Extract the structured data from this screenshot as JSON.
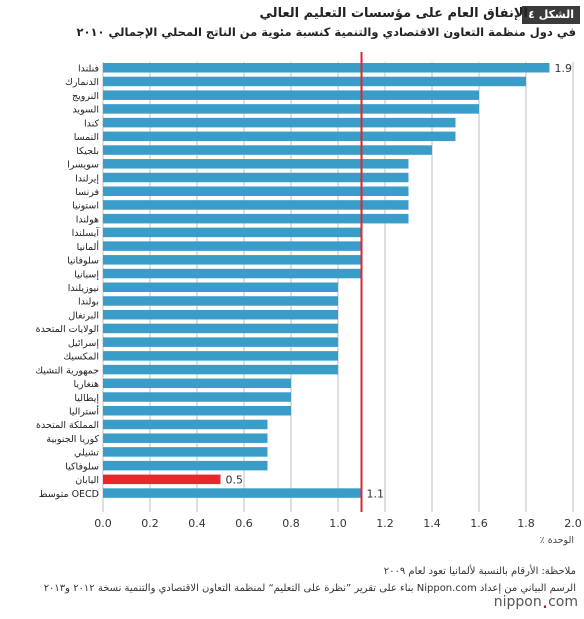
{
  "header": {
    "badge": "الشكل ٤",
    "title": "الإنفاق العام على مؤسسات التعليم العالي",
    "subtitle": "في دول منظمة التعاون الاقتصادي والتنمية كنسبة مئوية من الناتج المحلي الإجمالي ٢٠١٠"
  },
  "chart_data": {
    "type": "bar",
    "orientation": "horizontal",
    "categories": [
      "فنلندا",
      "الدنمارك",
      "النرويج",
      "السويد",
      "كندا",
      "النمسا",
      "بلجيكا",
      "سويسرا",
      "إيرلندا",
      "فرنسا",
      "استونيا",
      "هولندا",
      "آيسلندا",
      "ألمانيا",
      "سلوفانيا",
      "إسبانيا",
      "نيوزيلندا",
      "بولندا",
      "البرتغال",
      "الولايات المتحدة",
      "إسرائيل",
      "المكسيك",
      "جمهورية التشيك",
      "هنغاريا",
      "إيطاليا",
      "أستراليا",
      "المملكة المتحدة",
      "كوريا الجنوبية",
      "تشيلي",
      "سلوفاكيا",
      "اليابان",
      "متوسط OECD"
    ],
    "values": [
      1.9,
      1.8,
      1.6,
      1.6,
      1.5,
      1.5,
      1.4,
      1.3,
      1.3,
      1.3,
      1.3,
      1.3,
      1.1,
      1.1,
      1.1,
      1.1,
      1.0,
      1.0,
      1.0,
      1.0,
      1.0,
      1.0,
      1.0,
      0.8,
      0.8,
      0.8,
      0.7,
      0.7,
      0.7,
      0.7,
      0.5,
      1.1
    ],
    "highlight_index": 30,
    "data_labels": [
      {
        "index": 0,
        "text": "1.9"
      },
      {
        "index": 30,
        "text": "0.5"
      },
      {
        "index": 31,
        "text": "1.1"
      }
    ],
    "reference_line": 1.1,
    "xlim": [
      0,
      2.0
    ],
    "xticks": [
      "0.0",
      "0.2",
      "0.4",
      "0.6",
      "0.8",
      "1.0",
      "1.2",
      "1.4",
      "1.6",
      "1.8",
      "2.0"
    ],
    "xlabel": "الوحدة ٪",
    "grid": true,
    "colors": {
      "bar": "#3a9cc8",
      "highlight": "#e8272c",
      "refline": "#d9282f",
      "grid": "#bfbfbf"
    }
  },
  "notes": {
    "note1": "ملاحظة: الأرقام بالنسبة لألمانيا تعود لعام ٢٠٠٩",
    "note2": "الرسم البياني من إعداد Nippon.com بناء على تقرير ”نظرة على التعليم“ لمنظمة التعاون الاقتصادي والتنمية نسخة ٢٠١٢ و٢٠١٣"
  },
  "logo": "nippon.com"
}
